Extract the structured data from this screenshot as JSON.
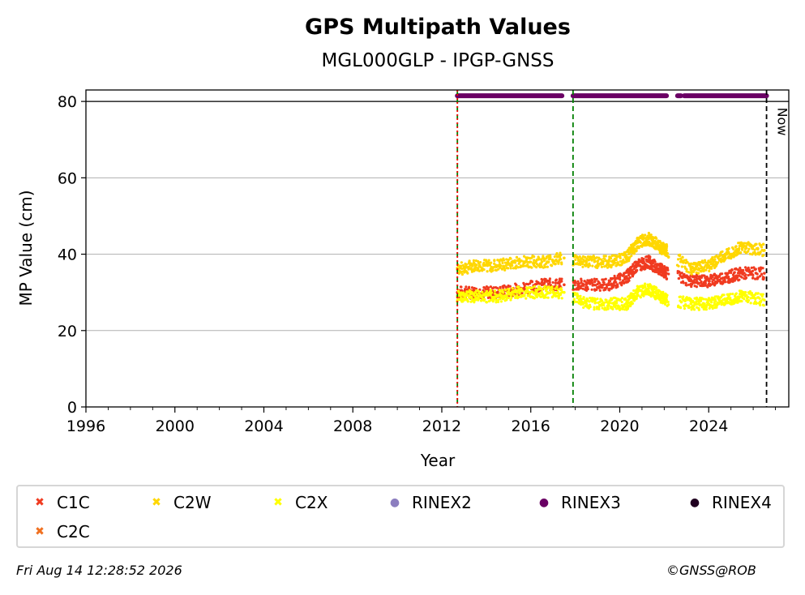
{
  "chart_data": {
    "type": "scatter",
    "title": "GPS Multipath Values",
    "subtitle": "MGL000GLP - IPGP-GNSS",
    "xlabel": "Year",
    "ylabel": "MP Value (cm)",
    "xlim": [
      1996,
      2027.6
    ],
    "ylim": [
      0,
      83
    ],
    "x_ticks": [
      "1996",
      "2000",
      "2004",
      "2008",
      "2012",
      "2016",
      "2020",
      "2024"
    ],
    "y_ticks": [
      "0",
      "20",
      "40",
      "60",
      "80"
    ],
    "grid": "horizontal",
    "legend_placement": "bottom",
    "vlines": [
      {
        "x": 2012.7,
        "color": "#008000",
        "style": "dashed"
      },
      {
        "x": 2012.7,
        "color": "#ff0000",
        "style": "dotted"
      },
      {
        "x": 2017.9,
        "color": "#008000",
        "style": "dashed"
      },
      {
        "x": 2026.6,
        "color": "#000000",
        "style": "dashed",
        "label": "Now"
      }
    ],
    "hline": {
      "y": 80,
      "color": "#000000"
    },
    "series": [
      {
        "name": "C1C",
        "color": "#f03b20",
        "marker": "x",
        "x": [
          2012.7,
          2013.5,
          2014.5,
          2015.5,
          2016.5,
          2017.5,
          2018.5,
          2019.5,
          2020.3,
          2020.8,
          2021.3,
          2021.8,
          2022.1,
          2023.2,
          2024.0,
          2024.8,
          2025.5,
          2026.5
        ],
        "y": [
          30,
          30,
          30,
          31,
          32,
          32,
          32,
          32,
          34,
          37,
          38,
          36,
          35,
          33,
          33,
          34,
          35,
          35
        ]
      },
      {
        "name": "C2W",
        "color": "#ffd700",
        "marker": "x",
        "x": [
          2012.7,
          2013.5,
          2014.5,
          2015.5,
          2016.5,
          2017.5,
          2018.5,
          2019.5,
          2020.3,
          2020.8,
          2021.3,
          2021.8,
          2022.1,
          2023.2,
          2024.0,
          2024.8,
          2025.5,
          2026.5
        ],
        "y": [
          36,
          37,
          37,
          38,
          38,
          39,
          38,
          38,
          39,
          43,
          44,
          42,
          41,
          36,
          37,
          40,
          42,
          41
        ]
      },
      {
        "name": "C2X",
        "color": "#ffff00",
        "marker": "x",
        "x": [
          2012.7,
          2013.5,
          2014.5,
          2015.5,
          2016.5,
          2017.5,
          2018.5,
          2019.5,
          2020.3,
          2020.8,
          2021.3,
          2021.8,
          2022.1,
          2023.2,
          2024.0,
          2024.8,
          2025.5,
          2026.5
        ],
        "y": [
          29,
          29,
          29,
          30,
          30,
          30,
          27,
          27,
          27,
          30,
          31,
          29,
          28,
          27,
          27,
          28,
          29,
          28
        ]
      },
      {
        "name": "RINEX2",
        "color": "#8c7ebf",
        "marker": "o",
        "x": [],
        "y": []
      },
      {
        "name": "RINEX3",
        "color": "#6a0064",
        "marker": "o",
        "segments": [
          [
            2012.7,
            2017.4
          ],
          [
            2017.9,
            2022.1
          ],
          [
            2022.6,
            2022.75
          ],
          [
            2022.9,
            2026.6
          ]
        ],
        "y": 81.5
      },
      {
        "name": "RINEX4",
        "color": "#200020",
        "marker": "o",
        "x": [],
        "y": []
      },
      {
        "name": "C2C",
        "color": "#f07020",
        "marker": "x",
        "x": [],
        "y": []
      }
    ]
  },
  "legend": [
    "C1C",
    "C2W",
    "C2X",
    "RINEX2",
    "RINEX3",
    "RINEX4",
    "C2C"
  ],
  "now_label": "Now",
  "footer": {
    "timestamp": "Fri Aug 14 12:28:52 2026",
    "copyright": "©GNSS@ROB"
  }
}
